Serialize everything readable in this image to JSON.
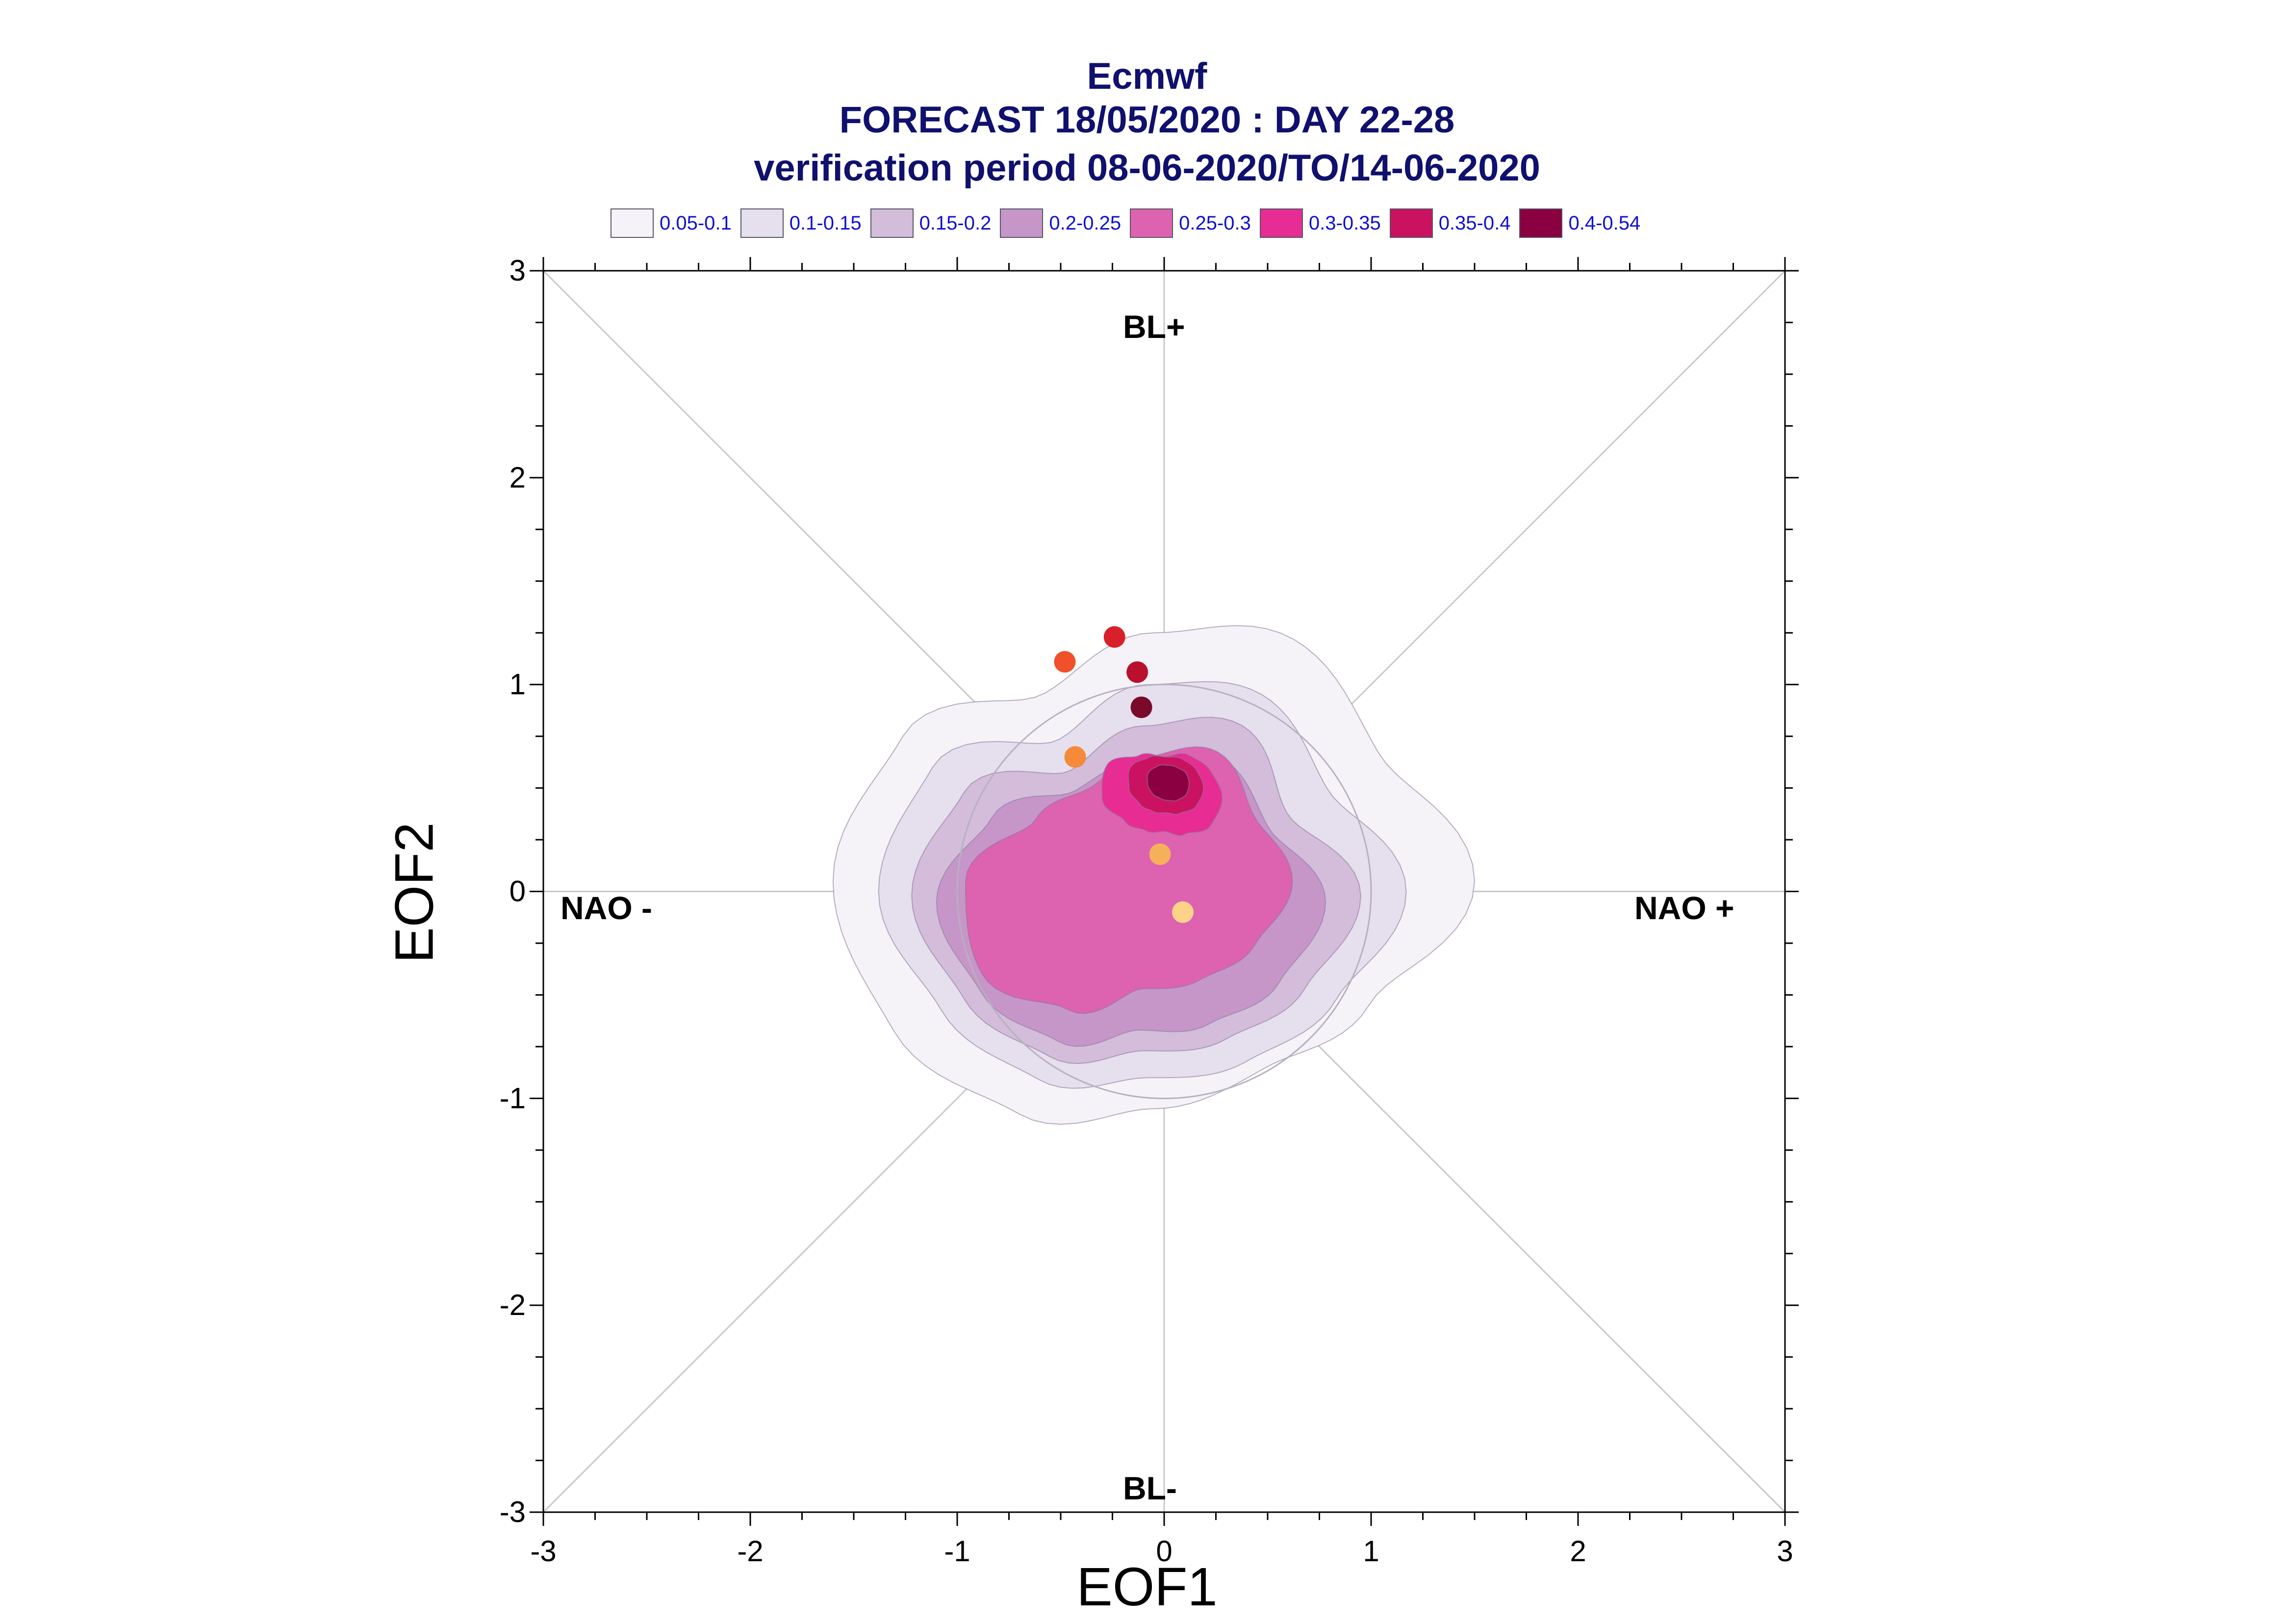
{
  "title": {
    "line1": "Ecmwf",
    "line2": "FORECAST 18/05/2020 : DAY 22-28",
    "line3": "verification period 08-06-2020/TO/14-06-2020"
  },
  "legend": [
    {
      "label": "0.05-0.1",
      "color": "#f6f3f8"
    },
    {
      "label": "0.1-0.15",
      "color": "#e6dfee"
    },
    {
      "label": "0.15-0.2",
      "color": "#d3bdda"
    },
    {
      "label": "0.2-0.25",
      "color": "#c796c9"
    },
    {
      "label": "0.25-0.3",
      "color": "#dd62b0"
    },
    {
      "label": "0.3-0.35",
      "color": "#e72c93"
    },
    {
      "label": "0.35-0.4",
      "color": "#cb1260"
    },
    {
      "label": "0.4-0.54",
      "color": "#8a0041"
    }
  ],
  "regimes": {
    "top": "BL+",
    "bottom": "BL-",
    "left": "NAO -",
    "right": "NAO +"
  },
  "chart_data": {
    "type": "contour-density-scatter",
    "title": "Ecmwf FORECAST 18/05/2020 : DAY 22-28",
    "subtitle": "verification period 08-06-2020/TO/14-06-2020",
    "xlabel": "EOF1",
    "ylabel": "EOF2",
    "xlim": [
      -3,
      3
    ],
    "ylim": [
      -3,
      3
    ],
    "xticks": [
      "-3",
      "-2",
      "-1",
      "0",
      "1",
      "2",
      "3"
    ],
    "yticks": [
      "-3",
      "-2",
      "-1",
      "0",
      "1",
      "2",
      "3"
    ],
    "grid": "zero lines and diagonals",
    "density_levels": [
      0.05,
      0.1,
      0.15,
      0.2,
      0.25,
      0.3,
      0.35,
      0.4,
      0.54
    ],
    "density_peak": {
      "x": 0.02,
      "y": 0.52
    },
    "circle_radius": 1.0,
    "points": [
      {
        "x": -0.48,
        "y": 1.11,
        "color": "#f0502a"
      },
      {
        "x": -0.24,
        "y": 1.23,
        "color": "#d8202a"
      },
      {
        "x": -0.13,
        "y": 1.06,
        "color": "#b8102e"
      },
      {
        "x": -0.11,
        "y": 0.89,
        "color": "#7a0a2a"
      },
      {
        "x": -0.43,
        "y": 0.65,
        "color": "#f58a3a"
      },
      {
        "x": -0.02,
        "y": 0.18,
        "color": "#f7b05a"
      },
      {
        "x": 0.09,
        "y": -0.1,
        "color": "#fdd38a"
      }
    ]
  }
}
